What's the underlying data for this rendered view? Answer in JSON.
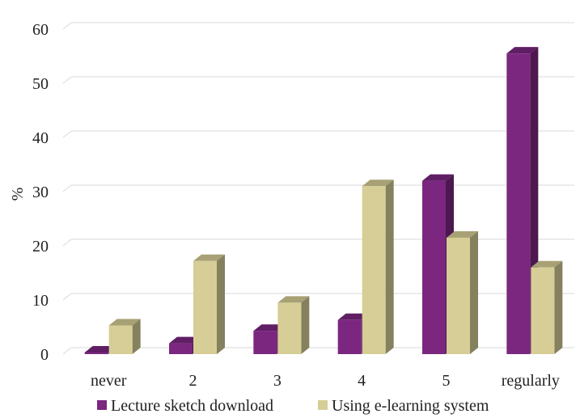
{
  "chart_data": {
    "type": "bar",
    "title": "",
    "xlabel": "",
    "ylabel": "%",
    "ylim": [
      0,
      60
    ],
    "y_ticks": [
      "0",
      "10",
      "20",
      "30",
      "40",
      "50",
      "60"
    ],
    "grid": true,
    "legend_position": "bottom",
    "categories": [
      "never",
      "2",
      "3",
      "4",
      "5",
      "regularly"
    ],
    "series": [
      {
        "name": "Lecture sketch download",
        "color": "#7b2780",
        "values": [
          0.3,
          2,
          4.3,
          6.3,
          32,
          55.5
        ]
      },
      {
        "name": "Using e-learning system",
        "color": "#d6ce96",
        "values": [
          5.3,
          17.2,
          9.5,
          31,
          21.5,
          16
        ]
      }
    ]
  }
}
